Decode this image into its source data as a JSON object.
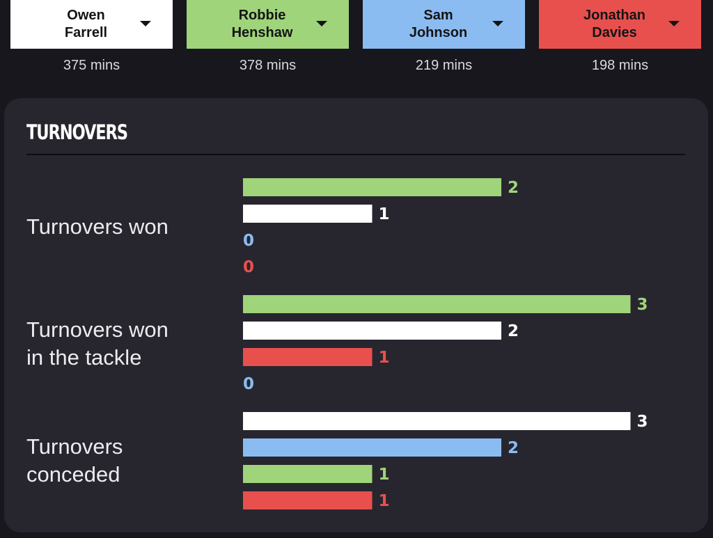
{
  "players": [
    {
      "key": "farrell",
      "name": "Owen\nFarrell",
      "mins": "375 mins",
      "color": "#ffffff"
    },
    {
      "key": "henshaw",
      "name": "Robbie\nHenshaw",
      "mins": "378 mins",
      "color": "#9fd47a"
    },
    {
      "key": "johnson",
      "name": "Sam\nJohnson",
      "mins": "219 mins",
      "color": "#8bbcf1"
    },
    {
      "key": "davies",
      "name": "Jonathan\nDavies",
      "mins": "198 mins",
      "color": "#e8504e"
    }
  ],
  "card": {
    "title": "TURNOVERS"
  },
  "chart_data": {
    "type": "bar",
    "orientation": "horizontal",
    "title": "TURNOVERS",
    "xlim": [
      0,
      3
    ],
    "grid": false,
    "groups": [
      {
        "category": "Turnovers won",
        "bars": [
          {
            "player": "Robbie Henshaw",
            "value": 2,
            "color": "#9fd47a"
          },
          {
            "player": "Owen Farrell",
            "value": 1,
            "color": "#ffffff"
          },
          {
            "player": "Sam Johnson",
            "value": 0,
            "color": "#8bbcf1"
          },
          {
            "player": "Jonathan Davies",
            "value": 0,
            "color": "#e8504e"
          }
        ]
      },
      {
        "category": "Turnovers won in the tackle",
        "bars": [
          {
            "player": "Robbie Henshaw",
            "value": 3,
            "color": "#9fd47a"
          },
          {
            "player": "Owen Farrell",
            "value": 2,
            "color": "#ffffff"
          },
          {
            "player": "Jonathan Davies",
            "value": 1,
            "color": "#e8504e"
          },
          {
            "player": "Sam Johnson",
            "value": 0,
            "color": "#8bbcf1"
          }
        ]
      },
      {
        "category": "Turnovers conceded",
        "bars": [
          {
            "player": "Owen Farrell",
            "value": 3,
            "color": "#ffffff"
          },
          {
            "player": "Sam Johnson",
            "value": 2,
            "color": "#8bbcf1"
          },
          {
            "player": "Robbie Henshaw",
            "value": 1,
            "color": "#9fd47a"
          },
          {
            "player": "Jonathan Davies",
            "value": 1,
            "color": "#e8504e"
          }
        ]
      }
    ]
  }
}
